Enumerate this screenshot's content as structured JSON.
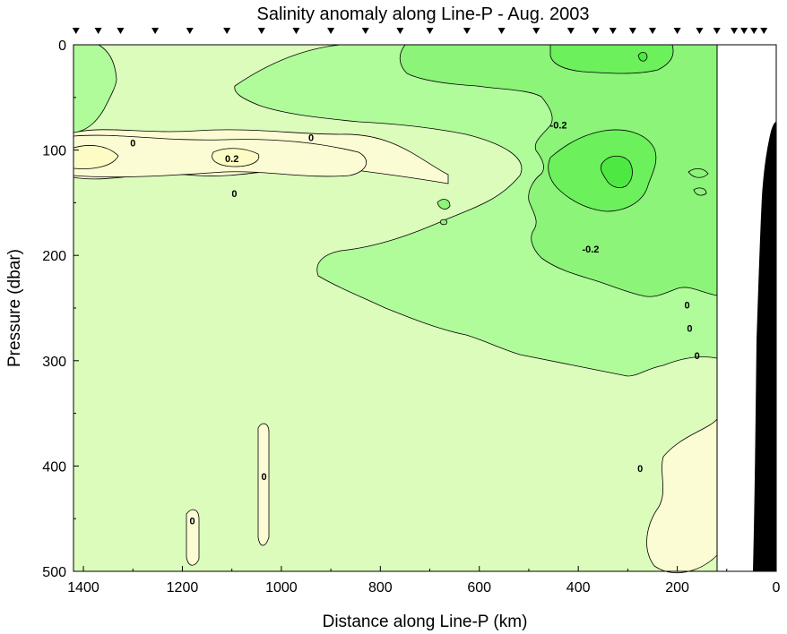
{
  "chart_data": {
    "type": "contour",
    "title": "Salinity anomaly along Line-P - Aug. 2003",
    "xlabel": "Distance along Line-P (km)",
    "ylabel": "Pressure (dbar)",
    "xlim": [
      1420,
      0
    ],
    "ylim": [
      0,
      500
    ],
    "x_reversed": true,
    "y_reversed": true,
    "x_ticks": [
      1400,
      1200,
      1000,
      800,
      600,
      400,
      200,
      0
    ],
    "y_ticks": [
      0,
      100,
      200,
      300,
      400,
      500
    ],
    "contour_levels": [
      -0.4,
      -0.2,
      0,
      0.2
    ],
    "contour_labels": [
      {
        "text": "0",
        "x": 1300,
        "y": 93
      },
      {
        "text": "0.2",
        "x": 1100,
        "y": 108
      },
      {
        "text": "0",
        "x": 1095,
        "y": 141
      },
      {
        "text": "0",
        "x": 940,
        "y": 88
      },
      {
        "text": "-0.2",
        "x": 440,
        "y": 76
      },
      {
        "text": "-0.2",
        "x": 375,
        "y": 194
      },
      {
        "text": "0",
        "x": 1035,
        "y": 410
      },
      {
        "text": "0",
        "x": 1180,
        "y": 452
      },
      {
        "text": "0",
        "x": 180,
        "y": 247
      },
      {
        "text": "0",
        "x": 175,
        "y": 269
      },
      {
        "text": "0",
        "x": 160,
        "y": 295
      },
      {
        "text": "0",
        "x": 275,
        "y": 402
      }
    ],
    "station_markers_km": [
      1415,
      1370,
      1325,
      1255,
      1185,
      1110,
      1040,
      970,
      900,
      830,
      760,
      700,
      625,
      555,
      485,
      415,
      365,
      330,
      290,
      250,
      200,
      155,
      120,
      85,
      65,
      45,
      25
    ],
    "data_limit_km": 125,
    "colors": {
      "background_field": "#dcfcbc",
      "anomaly_pos_0_0.2": "#fcfcd4",
      "anomaly_pos_gt_0.2": "#fcfcc4",
      "anomaly_neg_0.2_0": "#b0fc9a",
      "anomaly_neg_0.4_0.2": "#8cf478",
      "anomaly_lt_0.4": "#6cf05c",
      "bathymetry": "#000000"
    }
  }
}
